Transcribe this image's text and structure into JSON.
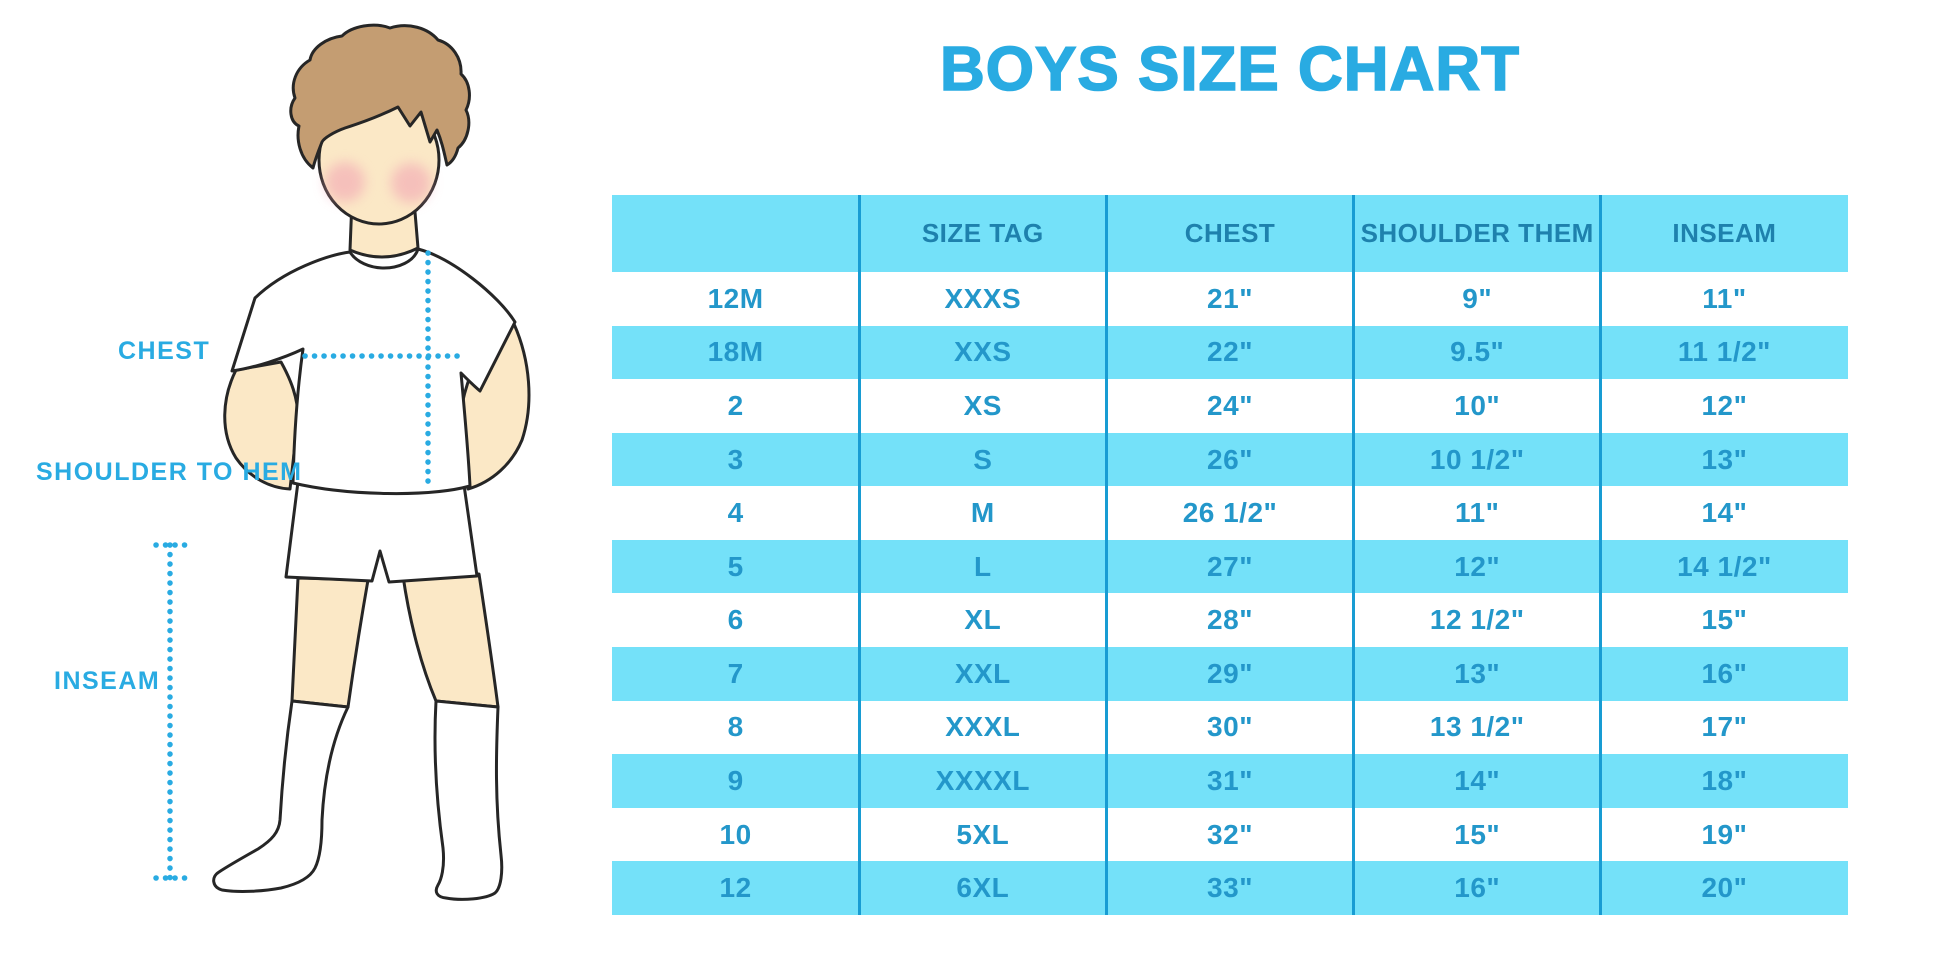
{
  "title": "BOYS SIZE CHART",
  "figure_labels": {
    "chest": "CHEST",
    "shoulder_to_hem": "SHOULDER TO HEM",
    "inseam": "INSEAM"
  },
  "colors": {
    "accent": "#29ABE2",
    "row_band": "#74E1F9",
    "header_text": "#1E81AD",
    "cell_text": "#2397CA",
    "column_line": "#189CD3",
    "skin": "#FBE8C6",
    "hair": "#C49D72",
    "cheek": "#F2A6B4",
    "outline": "#262626"
  },
  "chart_data": {
    "type": "table",
    "title": "BOYS SIZE CHART",
    "columns": [
      "",
      "SIZE TAG",
      "CHEST",
      "SHOULDER THEM",
      "INSEAM"
    ],
    "rows": [
      [
        "12M",
        "XXXS",
        "21\"",
        "9\"",
        "11\""
      ],
      [
        "18M",
        "XXS",
        "22\"",
        "9.5\"",
        "11 1/2\""
      ],
      [
        "2",
        "XS",
        "24\"",
        "10\"",
        "12\""
      ],
      [
        "3",
        "S",
        "26\"",
        "10 1/2\"",
        "13\""
      ],
      [
        "4",
        "M",
        "26 1/2\"",
        "11\"",
        "14\""
      ],
      [
        "5",
        "L",
        "27\"",
        "12\"",
        "14 1/2\""
      ],
      [
        "6",
        "XL",
        "28\"",
        "12 1/2\"",
        "15\""
      ],
      [
        "7",
        "XXL",
        "29\"",
        "13\"",
        "16\""
      ],
      [
        "8",
        "XXXL",
        "30\"",
        "13 1/2\"",
        "17\""
      ],
      [
        "9",
        "XXXXL",
        "31\"",
        "14\"",
        "18\""
      ],
      [
        "10",
        "5XL",
        "32\"",
        "15\"",
        "19\""
      ],
      [
        "12",
        "6XL",
        "33\"",
        "16\"",
        "20\""
      ]
    ],
    "layout": {
      "banding": "header cyan, then rows alternate white/cyan starting white",
      "grid": "vertical column separators only"
    }
  }
}
